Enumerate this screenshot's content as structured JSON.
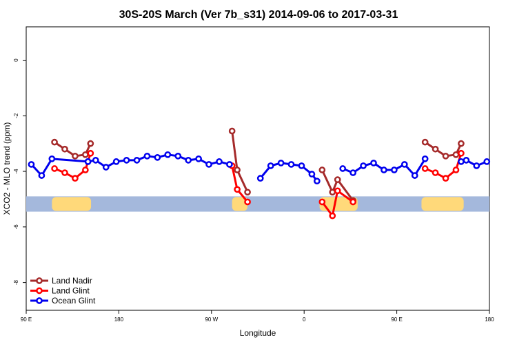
{
  "chart_data": {
    "type": "line",
    "title": "30S-20S March (Ver 7b_s31)   2014-09-06 to 2017-03-31",
    "xlabel": "Longitude",
    "ylabel": "XCO2 - MLO trend (ppm)",
    "xlim": [
      0,
      450
    ],
    "ylim": [
      -9,
      1.2
    ],
    "x_ticks": [
      {
        "pos": 0,
        "label": "90 E"
      },
      {
        "pos": 90,
        "label": "180"
      },
      {
        "pos": 180,
        "label": "90 W"
      },
      {
        "pos": 270,
        "label": "0"
      },
      {
        "pos": 360,
        "label": "90 E"
      },
      {
        "pos": 450,
        "label": "180"
      }
    ],
    "y_ticks": [
      0,
      -2,
      -4,
      -6,
      -8
    ],
    "grid": false,
    "legend_position": "bottom-left",
    "land_band": {
      "y_range": [
        -5.45,
        -4.9
      ],
      "ocean_color": "#a4b8dc",
      "land_color": "#ffd97a",
      "land_segments": [
        [
          25,
          63
        ],
        [
          200,
          215
        ],
        [
          285,
          322
        ],
        [
          384,
          425
        ]
      ]
    },
    "series": [
      {
        "name": "Land Nadir",
        "color": "#a52a2a",
        "segments": [
          [
            [
              27.5,
              -2.95
            ],
            [
              37.5,
              -3.2
            ],
            [
              47.5,
              -3.45
            ],
            [
              57.5,
              -3.4
            ],
            [
              62.5,
              -3.0
            ]
          ],
          [
            [
              200,
              -2.55
            ],
            [
              205,
              -3.95
            ],
            [
              215,
              -4.75
            ]
          ],
          [
            [
              287.5,
              -3.95
            ],
            [
              297.5,
              -4.75
            ],
            [
              302.5,
              -4.3
            ],
            [
              317.5,
              -5.05
            ]
          ],
          [
            [
              387.5,
              -2.95
            ],
            [
              397.5,
              -3.2
            ],
            [
              407.5,
              -3.45
            ],
            [
              417.5,
              -3.4
            ],
            [
              422.5,
              -3.0
            ]
          ]
        ]
      },
      {
        "name": "Land Glint",
        "color": "#ff0000",
        "segments": [
          [
            [
              27.5,
              -3.9
            ],
            [
              37.5,
              -4.05
            ],
            [
              47.5,
              -4.25
            ],
            [
              57.5,
              -3.95
            ],
            [
              62.5,
              -3.35
            ]
          ],
          [
            [
              200,
              -3.8
            ],
            [
              205,
              -4.65
            ],
            [
              215,
              -5.1
            ]
          ],
          [
            [
              287.5,
              -5.1
            ],
            [
              297.5,
              -5.6
            ],
            [
              302.5,
              -4.7
            ],
            [
              317.5,
              -5.1
            ]
          ],
          [
            [
              387.5,
              -3.9
            ],
            [
              397.5,
              -4.05
            ],
            [
              407.5,
              -4.25
            ],
            [
              417.5,
              -3.95
            ],
            [
              422.5,
              -3.35
            ]
          ]
        ]
      },
      {
        "name": "Ocean Glint",
        "color": "#0000ee",
        "segments": [
          [
            [
              5,
              -3.75
            ],
            [
              15,
              -4.15
            ],
            [
              25,
              -3.55
            ],
            [
              60,
              -3.65
            ]
          ],
          [
            [
              60,
              -3.65
            ],
            [
              67.5,
              -3.6
            ],
            [
              77.5,
              -3.85
            ],
            [
              87.5,
              -3.65
            ],
            [
              97.5,
              -3.6
            ],
            [
              107.5,
              -3.6
            ],
            [
              117.5,
              -3.45
            ],
            [
              127.5,
              -3.5
            ],
            [
              137.5,
              -3.4
            ],
            [
              147.5,
              -3.45
            ],
            [
              157.5,
              -3.6
            ],
            [
              167.5,
              -3.55
            ],
            [
              177.5,
              -3.75
            ],
            [
              187.5,
              -3.65
            ],
            [
              197.5,
              -3.75
            ]
          ],
          [
            [
              227.5,
              -4.25
            ],
            [
              237.5,
              -3.8
            ],
            [
              247.5,
              -3.7
            ],
            [
              257.5,
              -3.75
            ],
            [
              267.5,
              -3.8
            ],
            [
              277.5,
              -4.1
            ],
            [
              282.5,
              -4.35
            ]
          ],
          [
            [
              307.5,
              -3.9
            ],
            [
              317.5,
              -4.05
            ],
            [
              327.5,
              -3.8
            ],
            [
              337.5,
              -3.7
            ],
            [
              347.5,
              -3.95
            ],
            [
              357.5,
              -3.95
            ],
            [
              367.5,
              -3.75
            ],
            [
              377.5,
              -4.15
            ],
            [
              387.5,
              -3.55
            ]
          ],
          [
            [
              422.5,
              -3.65
            ],
            [
              427.5,
              -3.6
            ],
            [
              437.5,
              -3.8
            ],
            [
              447.5,
              -3.65
            ]
          ]
        ]
      }
    ]
  }
}
